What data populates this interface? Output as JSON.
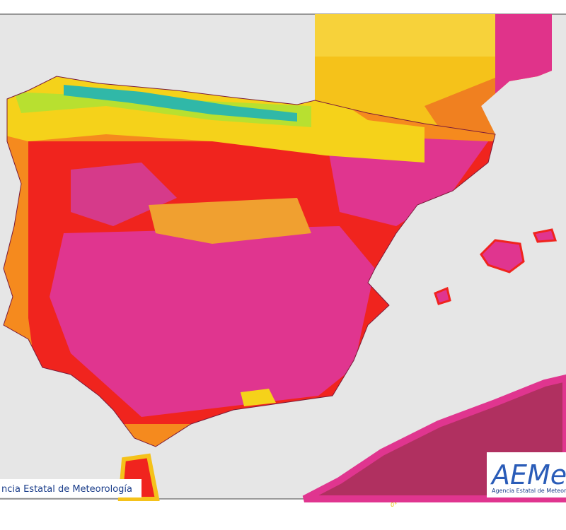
{
  "map": {
    "credit_label": "ncia Estatal de Meteorología",
    "logo": {
      "mark": "AEMet",
      "subtitle": "Agencia Estatal de Meteorología"
    },
    "footer_label": "0°"
  }
}
